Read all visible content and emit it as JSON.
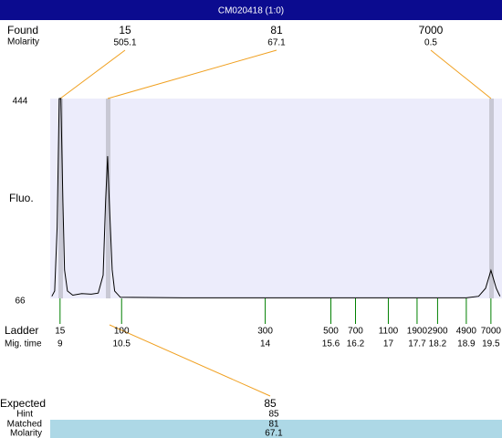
{
  "header": {
    "title": "CM020418 (1:0)"
  },
  "found": {
    "label": "Found",
    "molarity_label": "Molarity",
    "peaks": [
      {
        "size": 15,
        "molarity": 505.1
      },
      {
        "size": 81,
        "molarity": 67.1
      },
      {
        "size": 7000,
        "molarity": 0.5
      }
    ]
  },
  "chart_data": {
    "type": "line",
    "ylabel": "Fluo.",
    "ylim": [
      66,
      444
    ],
    "yticks": [
      444,
      66
    ],
    "xlim": [
      8.76,
      19.77
    ],
    "color": "#000000",
    "x": [
      8.8,
      8.87,
      8.93,
      8.98,
      9.02,
      9.07,
      9.11,
      9.18,
      9.31,
      9.53,
      9.76,
      9.93,
      10.05,
      10.11,
      10.16,
      10.2,
      10.27,
      10.33,
      10.47,
      12,
      15,
      18.9,
      19.2,
      19.37,
      19.5,
      19.63,
      19.72
    ],
    "values": [
      70,
      80,
      200,
      444,
      444,
      250,
      120,
      80,
      72,
      75,
      74,
      76,
      110,
      250,
      335,
      250,
      120,
      80,
      68,
      67,
      67,
      67,
      70,
      85,
      119,
      85,
      70
    ]
  },
  "ladder": {
    "label": "Ladder",
    "time_label": "Mig. time",
    "sizes": [
      15,
      100,
      300,
      500,
      700,
      1100,
      1900,
      2900,
      4900,
      7000
    ],
    "times": [
      9,
      10.5,
      14,
      15.6,
      16.2,
      17,
      17.7,
      18.2,
      18.9,
      19.5
    ]
  },
  "expected": {
    "label": "Expected",
    "value": 85,
    "hint_label": "Hint",
    "hint": 85,
    "matched_label": "Matched",
    "matched": 81,
    "molarity_label": "Molarity",
    "molarity": 67.1
  }
}
